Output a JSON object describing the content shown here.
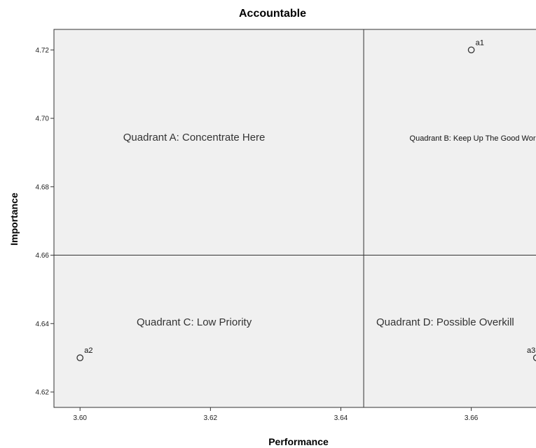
{
  "chart_data": {
    "type": "scatter",
    "title": "Accountable",
    "xlabel": "Performance",
    "ylabel": "Importance",
    "xlim": [
      3.596,
      3.671
    ],
    "ylim": [
      4.6155,
      4.726
    ],
    "x_ticks": [
      "3.60",
      "3.62",
      "3.64",
      "3.66"
    ],
    "y_ticks": [
      "4.62",
      "4.64",
      "4.66",
      "4.68",
      "4.70",
      "4.72"
    ],
    "grid": false,
    "reference_lines": {
      "x": 3.6435,
      "y": 4.66
    },
    "points": [
      {
        "label": "a1",
        "x": 3.66,
        "y": 4.72
      },
      {
        "label": "a2",
        "x": 3.6,
        "y": 4.63
      },
      {
        "label": "a3",
        "x": 3.67,
        "y": 4.63
      }
    ],
    "annotations": [
      {
        "text": "Quadrant A: Concentrate Here",
        "x": 3.6175,
        "y": 4.6945
      },
      {
        "text": "Quadrant B: Keep Up The Good Work",
        "x": 3.6605,
        "y": 4.6945
      },
      {
        "text": "Quadrant C: Low Priority",
        "x": 3.6175,
        "y": 4.6405
      },
      {
        "text": "Quadrant D: Possible Overkill",
        "x": 3.656,
        "y": 4.6405
      }
    ],
    "colors": {
      "plot_background": "#f0f0f0",
      "frame": "#333333",
      "marker": "#333333"
    }
  }
}
